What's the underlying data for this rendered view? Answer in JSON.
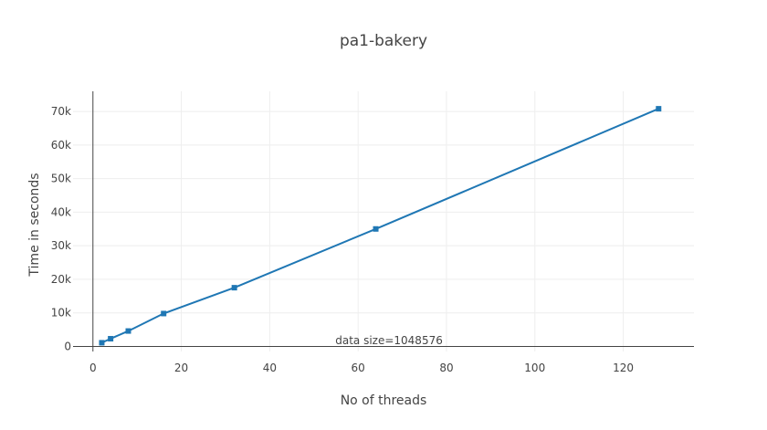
{
  "chart_data": {
    "type": "line",
    "title": "pa1-bakery",
    "xlabel": "No of threads",
    "ylabel": "Time in seconds",
    "xlim": [
      -4.5,
      136
    ],
    "ylim": [
      -1500,
      76000
    ],
    "x_ticks": [
      0,
      20,
      40,
      60,
      80,
      100,
      120
    ],
    "x_tick_labels": [
      "0",
      "20",
      "40",
      "60",
      "80",
      "100",
      "120"
    ],
    "y_ticks": [
      0,
      10000,
      20000,
      30000,
      40000,
      50000,
      60000,
      70000
    ],
    "y_tick_labels": [
      "0",
      "10k",
      "20k",
      "30k",
      "40k",
      "50k",
      "60k",
      "70k"
    ],
    "grid": true,
    "series": [
      {
        "color": "#1f77b4",
        "x": [
          2,
          4,
          8,
          16,
          32,
          64,
          128
        ],
        "y": [
          1100,
          2300,
          4600,
          9800,
          17500,
          35000,
          70800
        ]
      }
    ],
    "annotations": [
      {
        "text": "data size=1048576",
        "x": 67,
        "y": 1800
      }
    ]
  }
}
